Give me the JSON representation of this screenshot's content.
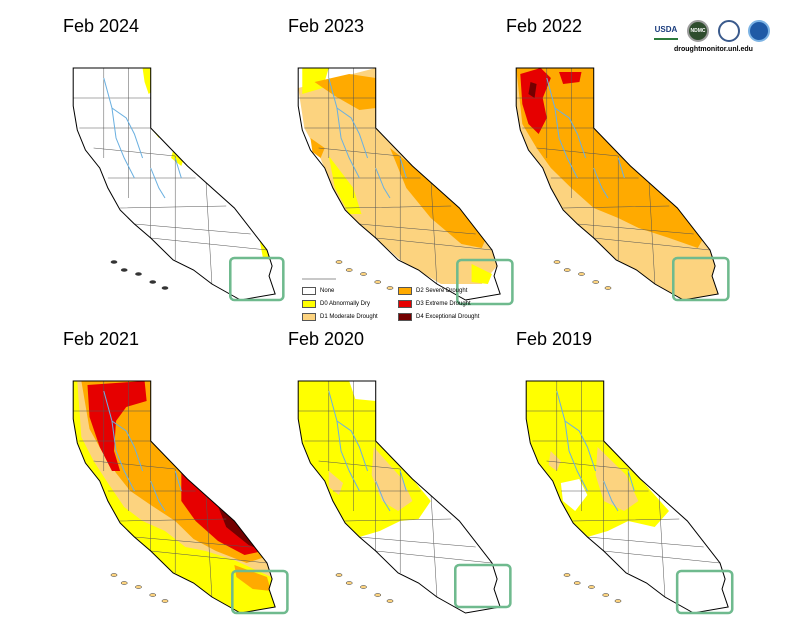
{
  "panels": [
    {
      "title": "Feb 2024"
    },
    {
      "title": "Feb 2023"
    },
    {
      "title": "Feb 2022"
    },
    {
      "title": "Feb 2021"
    },
    {
      "title": "Feb 2020"
    },
    {
      "title": "Feb 2019"
    }
  ],
  "logos": {
    "usda": "USDA",
    "ndmc": "NDMC",
    "url": "droughtmonitor.unl.edu"
  },
  "legend": {
    "items": [
      {
        "label": "None",
        "color": "#ffffff"
      },
      {
        "label": "D0 Abnormally Dry",
        "color": "#ffff00"
      },
      {
        "label": "D1 Moderate Drought",
        "color": "#fcd37f"
      },
      {
        "label": "D2 Severe Drought",
        "color": "#ffaa00"
      },
      {
        "label": "D3 Extreme Drought",
        "color": "#e60000"
      },
      {
        "label": "D4 Exceptional Drought",
        "color": "#730000"
      }
    ]
  },
  "colors": {
    "highlight_box": "#6fba8e",
    "rivers": "#6bb0e0",
    "state_outline": "#000000",
    "county_lines": "#555555"
  }
}
